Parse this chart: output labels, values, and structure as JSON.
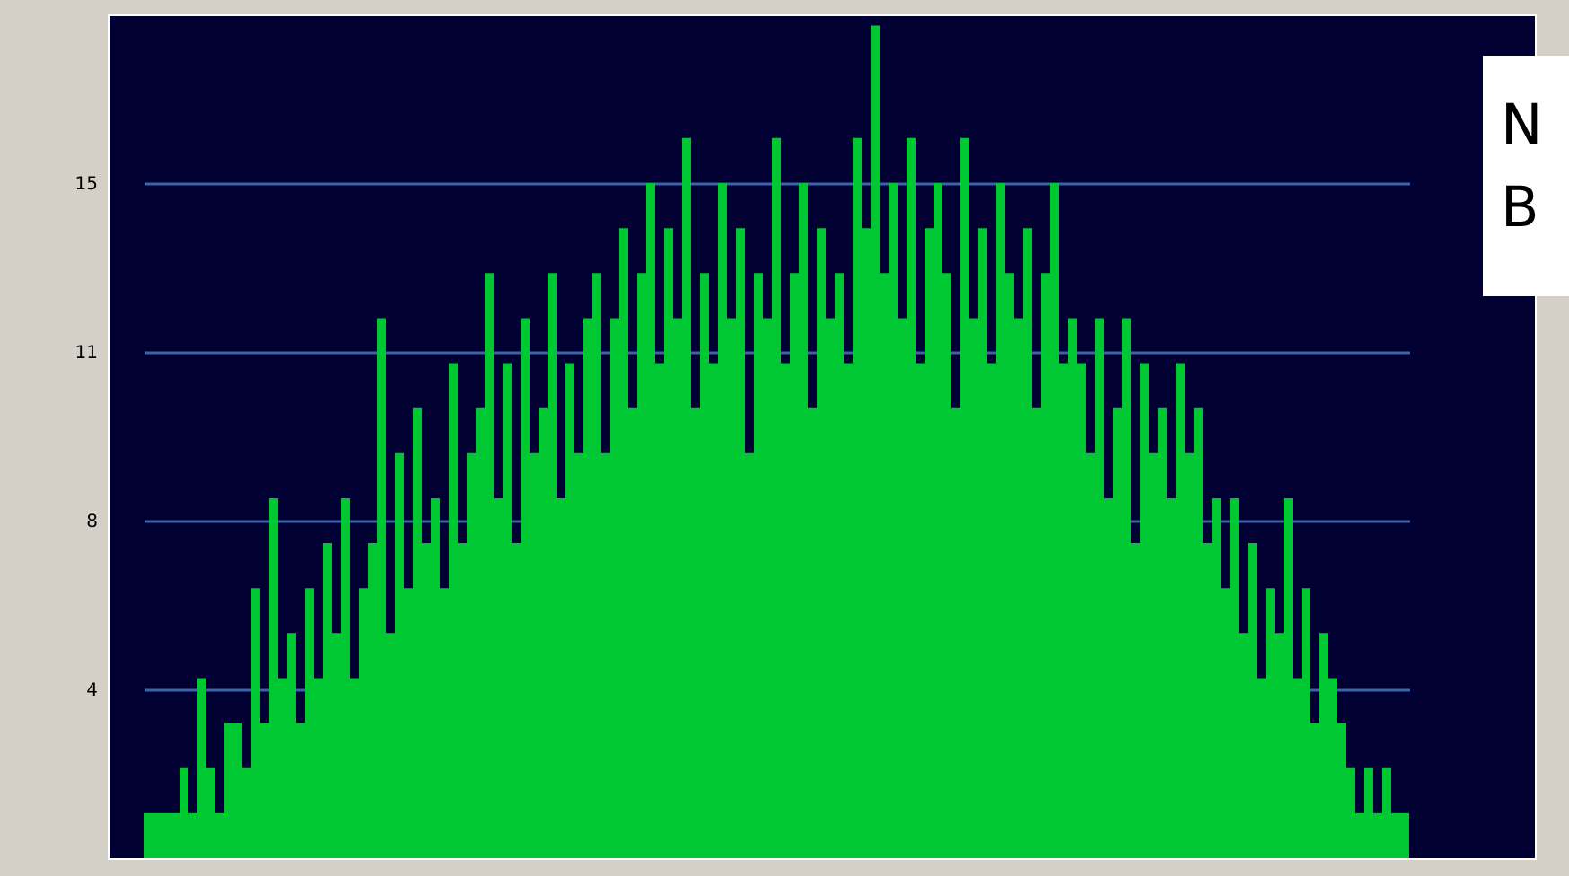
{
  "chart_data": {
    "type": "bar",
    "categories": [
      null,
      null,
      null,
      null,
      null,
      null,
      null,
      null,
      null,
      null,
      null,
      null,
      null,
      null,
      null,
      null,
      null,
      null,
      null,
      null,
      null,
      null,
      null,
      null,
      null,
      null,
      null,
      null,
      null,
      null,
      null,
      null,
      null,
      null,
      null,
      null,
      null,
      null,
      null,
      null,
      null,
      null,
      null,
      null,
      null,
      null,
      null,
      null,
      null,
      null,
      null,
      null,
      null,
      null,
      null,
      null,
      null,
      null,
      null,
      null,
      null,
      null,
      null,
      null,
      null,
      null,
      null,
      null,
      null,
      null,
      null,
      null,
      null,
      null,
      null,
      null,
      null,
      null,
      null,
      null,
      null,
      null,
      null,
      null,
      null,
      null,
      null,
      null,
      null,
      null,
      null,
      null,
      null,
      null,
      null,
      null,
      null,
      null,
      null,
      null,
      null,
      null,
      null,
      null,
      null,
      null,
      null,
      null,
      null,
      null,
      null,
      null,
      null,
      null,
      null,
      null,
      null,
      null,
      null,
      null,
      null,
      null,
      null,
      null,
      null,
      null,
      null,
      null,
      null,
      null,
      null,
      null,
      null,
      null,
      null,
      null,
      null,
      null,
      null,
      null,
      null
    ],
    "values": [
      1,
      1,
      1,
      1,
      2,
      1,
      4,
      2,
      1,
      3,
      3,
      2,
      6,
      3,
      8,
      4,
      5,
      3,
      6,
      4,
      7,
      5,
      8,
      4,
      6,
      7,
      12,
      5,
      9,
      6,
      10,
      7,
      8,
      6,
      11,
      7,
      9,
      10,
      13,
      8,
      11,
      7,
      12,
      9,
      10,
      13,
      8,
      11,
      9,
      12,
      13,
      9,
      12,
      14,
      10,
      13,
      15,
      11,
      14,
      12,
      16,
      10,
      13,
      11,
      15,
      12,
      14,
      9,
      13,
      12,
      16,
      11,
      13,
      15,
      10,
      14,
      12,
      13,
      11,
      16,
      14,
      18.5,
      13,
      15,
      12,
      16,
      11,
      14,
      15,
      13,
      10,
      16,
      12,
      14,
      11,
      15,
      13,
      12,
      14,
      10,
      13,
      15,
      11,
      12,
      11,
      9,
      12,
      8,
      10,
      12,
      7,
      11,
      9,
      10,
      8,
      11,
      9,
      10,
      7,
      8,
      6,
      8,
      5,
      7,
      4,
      6,
      5,
      8,
      4,
      6,
      3,
      5,
      4,
      3,
      2,
      1,
      2,
      1,
      2,
      1,
      1
    ],
    "color": "#00c832",
    "ylim": [
      0,
      18.75
    ],
    "yticks": [
      {
        "value": 3.75,
        "label": "4"
      },
      {
        "value": 7.5,
        "label": "8"
      },
      {
        "value": 11.25,
        "label": "11"
      },
      15
    ],
    "grid": "y",
    "tick_labels": "y",
    "annotations": [
      "N",
      "B"
    ]
  }
}
